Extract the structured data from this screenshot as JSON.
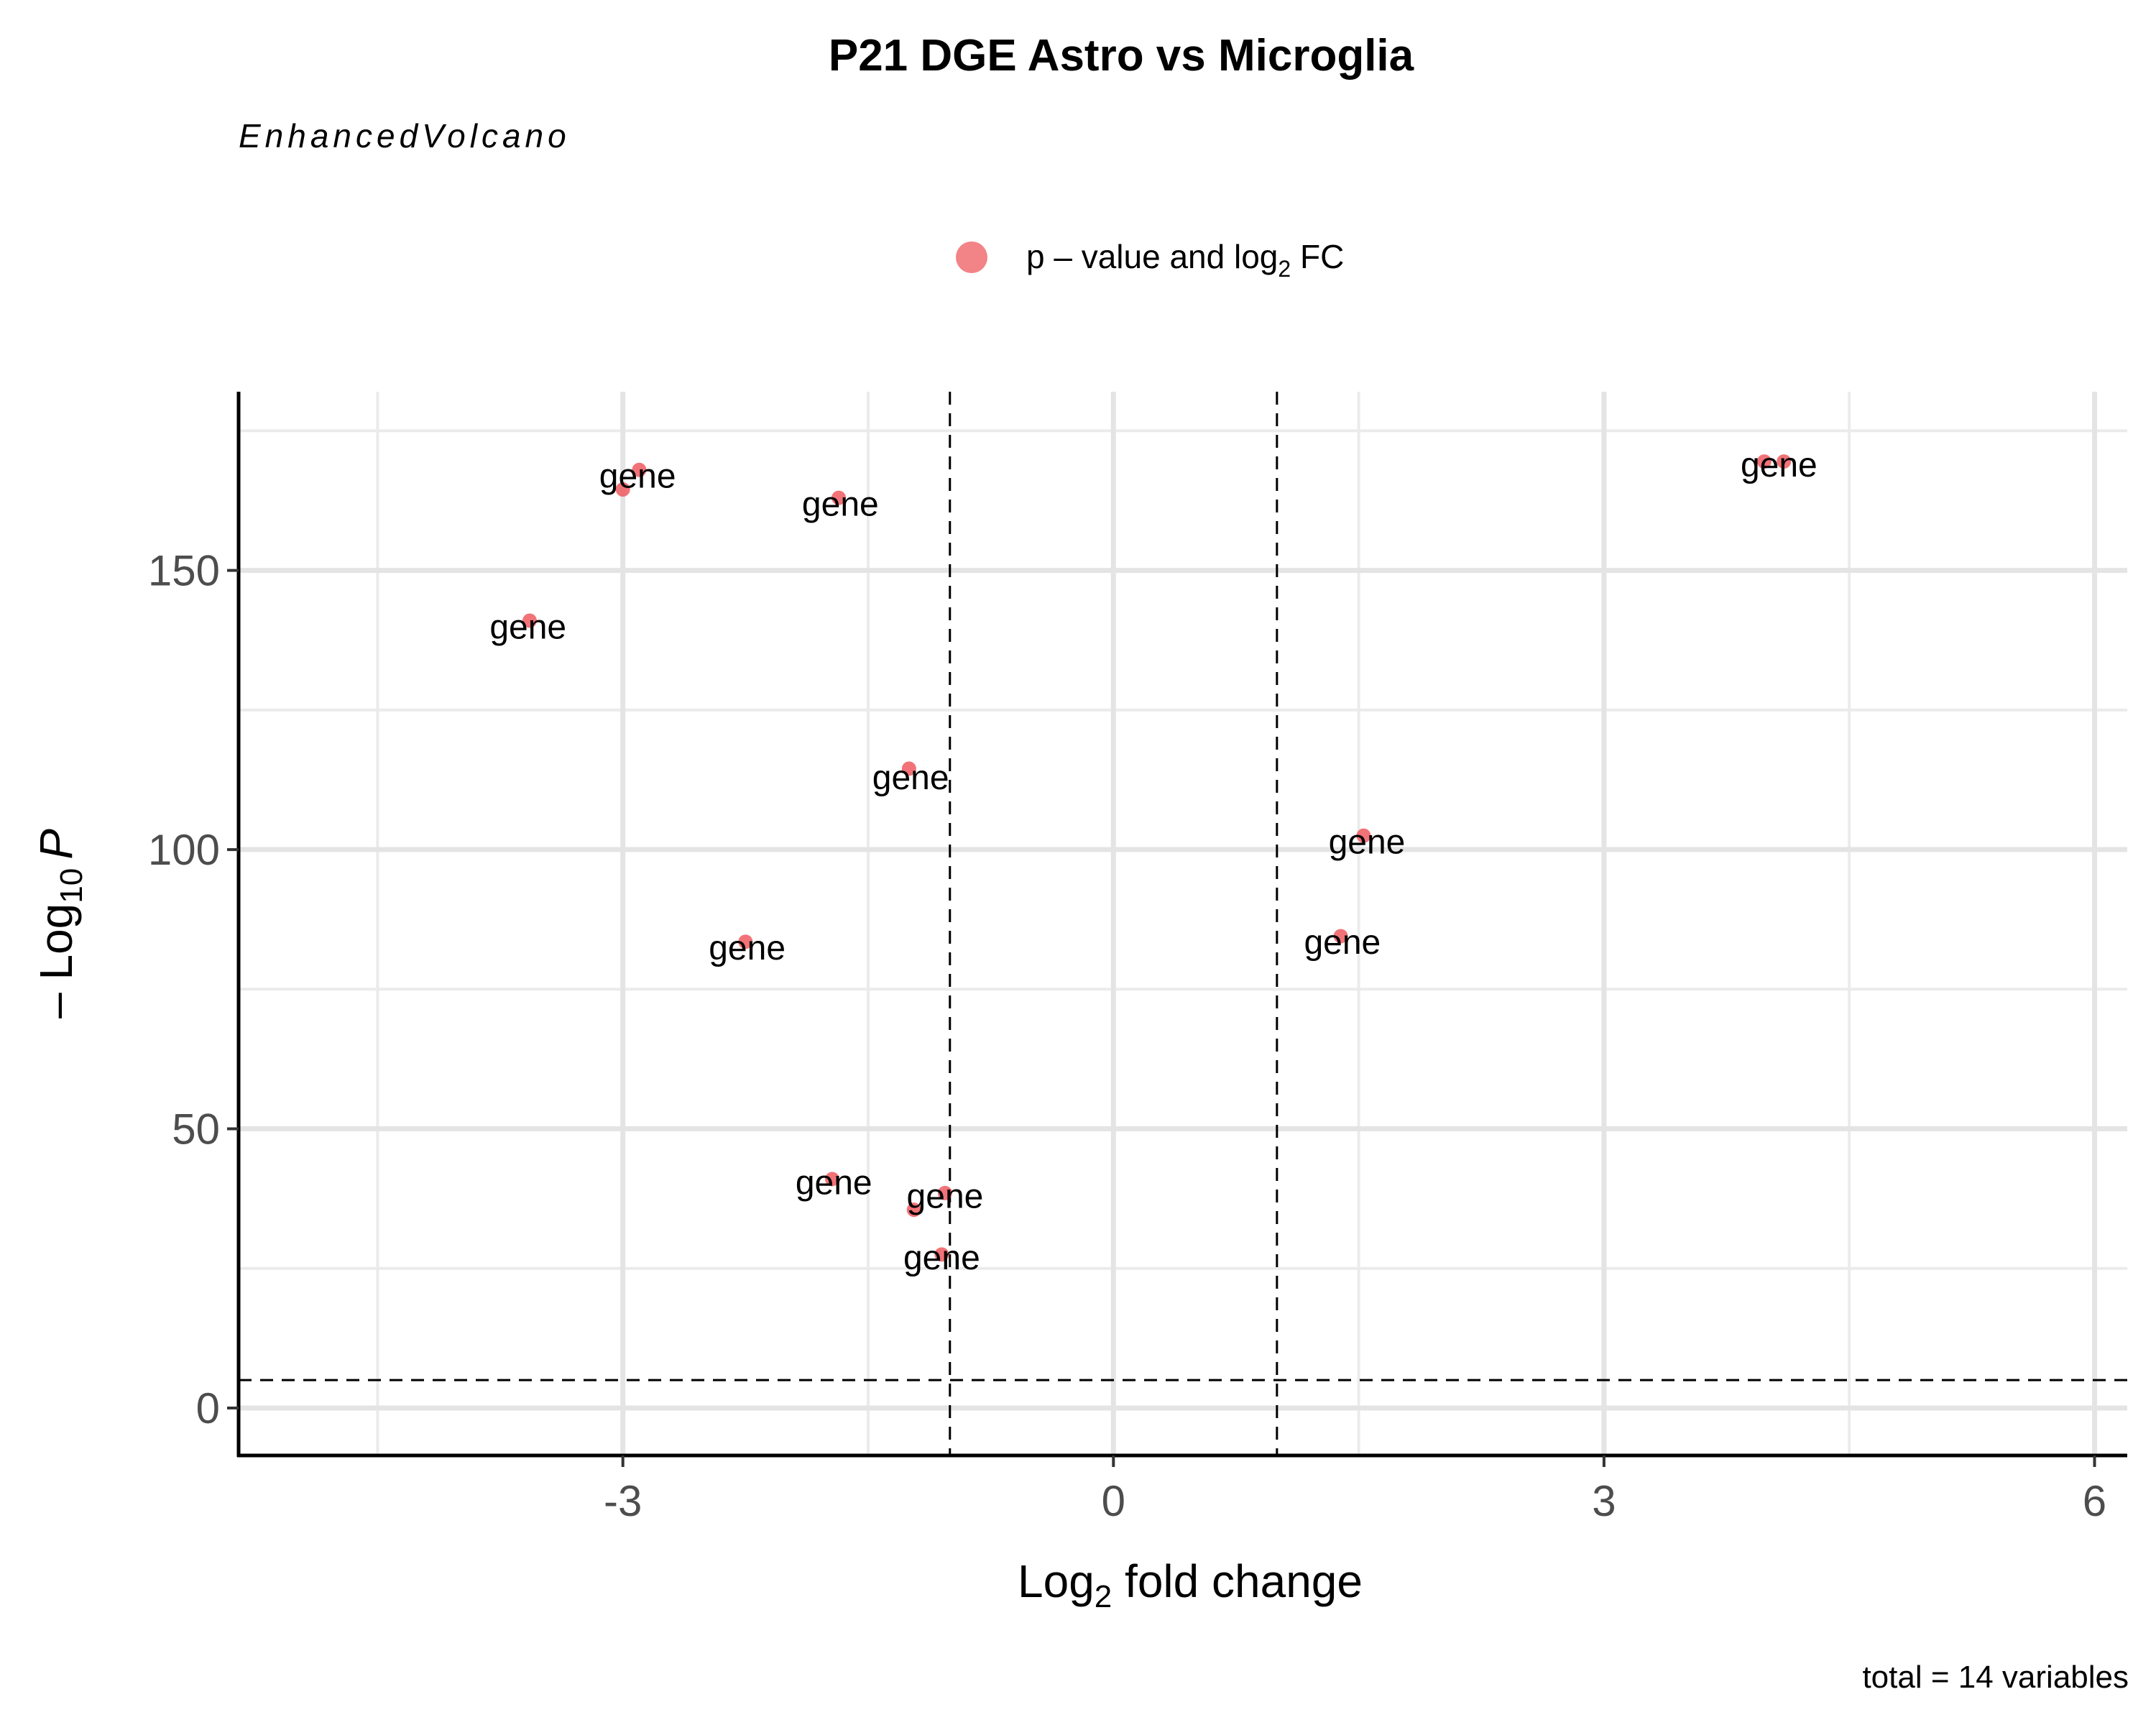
{
  "chart_data": {
    "type": "scatter",
    "title": "P21 DGE Astro vs Microglia",
    "subtitle": "EnhancedVolcano",
    "caption": "total = 14 variables",
    "xlabel": {
      "base": "Log",
      "sub": "2",
      "rest": " fold change"
    },
    "ylabel": {
      "prefix": "– Log",
      "sub": "10",
      "italic": "P"
    },
    "legend": {
      "position": "top",
      "entries": [
        {
          "parts": [
            "p – value and log",
            "2",
            " FC"
          ],
          "color": "#EE5A5F"
        }
      ]
    },
    "xlim": [
      -5.35,
      6.2
    ],
    "ylim": [
      -8.5,
      182
    ],
    "x_ticks": [
      -3,
      0,
      3,
      6
    ],
    "x_tick_labels": [
      "-3",
      "0",
      "3",
      "6"
    ],
    "x_minor_ticks": [
      -4.5,
      -1.5,
      1.5,
      4.5
    ],
    "y_ticks": [
      0,
      50,
      100,
      150
    ],
    "y_tick_labels": [
      "0",
      "50",
      "100",
      "150"
    ],
    "y_minor_ticks": [
      25,
      75,
      125,
      175
    ],
    "grid": true,
    "thresholds": {
      "fc_cutoff": [
        -1,
        1
      ],
      "p_cutoff_log10": 5
    },
    "point_color": "#EE5A5F",
    "points": [
      {
        "x": -2.9,
        "y": 168,
        "label": "gene"
      },
      {
        "x": -3.0,
        "y": 164.5,
        "label": "gene"
      },
      {
        "x": -1.68,
        "y": 163,
        "label": "gene"
      },
      {
        "x": -3.57,
        "y": 141,
        "label": "gene"
      },
      {
        "x": -1.25,
        "y": 114.5,
        "label": "gene"
      },
      {
        "x": -2.25,
        "y": 83.5,
        "label": "gene"
      },
      {
        "x": -1.72,
        "y": 41,
        "label": "gene"
      },
      {
        "x": -1.03,
        "y": 38.5,
        "label": "gene"
      },
      {
        "x": -1.22,
        "y": 35.5,
        "label": "gene"
      },
      {
        "x": -1.05,
        "y": 27.5,
        "label": "gene"
      },
      {
        "x": 1.53,
        "y": 102.5,
        "label": "gene"
      },
      {
        "x": 1.39,
        "y": 84.5,
        "label": "gene"
      },
      {
        "x": 3.98,
        "y": 169.5,
        "label": "gene"
      },
      {
        "x": 4.1,
        "y": 169.5,
        "label": "gene"
      }
    ],
    "labels": [
      {
        "x": -2.91,
        "y": 167,
        "text": "gene"
      },
      {
        "x": -1.67,
        "y": 162,
        "text": "gene"
      },
      {
        "x": -3.58,
        "y": 140,
        "text": "gene"
      },
      {
        "x": -1.24,
        "y": 113,
        "text": "gene"
      },
      {
        "x": -2.24,
        "y": 82.5,
        "text": "gene"
      },
      {
        "x": -1.71,
        "y": 40.5,
        "text": "gene"
      },
      {
        "x": -1.03,
        "y": 38,
        "text": "gene"
      },
      {
        "x": -1.05,
        "y": 27,
        "text": "gene"
      },
      {
        "x": 1.55,
        "y": 101.5,
        "text": "gene"
      },
      {
        "x": 1.4,
        "y": 83.5,
        "text": "gene"
      },
      {
        "x": 4.07,
        "y": 169,
        "text": "gene"
      }
    ]
  }
}
